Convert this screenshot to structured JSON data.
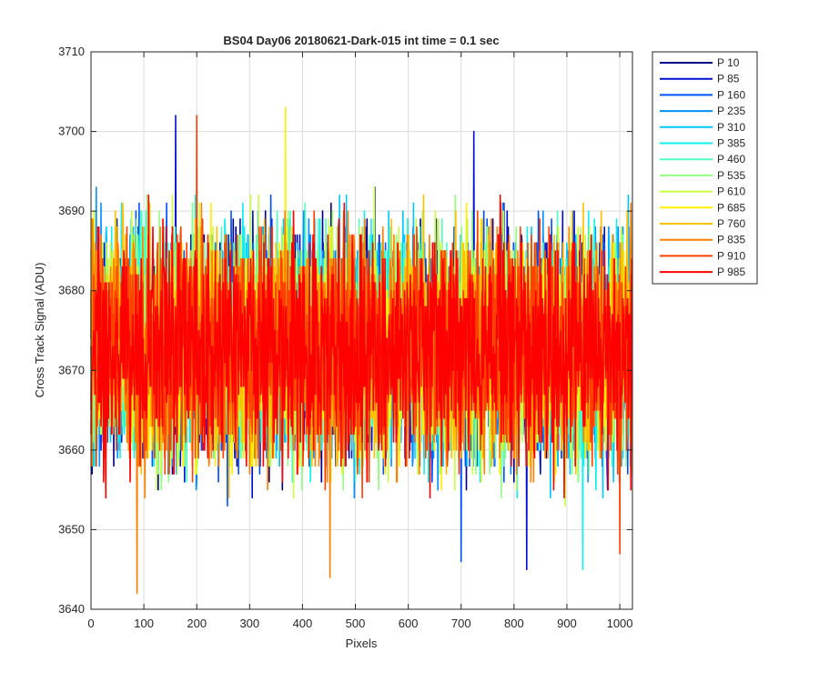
{
  "chart_data": {
    "type": "line",
    "title": "BS04 Day06 20180621-Dark-015 int time = 0.1 sec",
    "xlabel": "Pixels",
    "ylabel": "Cross Track Signal (ADU)",
    "xlim": [
      0,
      1024
    ],
    "ylim": [
      3640,
      3710
    ],
    "xticks": [
      0,
      100,
      200,
      300,
      400,
      500,
      600,
      700,
      800,
      900,
      1000
    ],
    "yticks": [
      3640,
      3650,
      3660,
      3670,
      3680,
      3690,
      3700,
      3710
    ],
    "grid": true,
    "legend_position": "outside-top-right",
    "x": {
      "start": 0,
      "end": 1023,
      "step": 1
    },
    "signal_mean": 3673,
    "noise_sd": 7,
    "notable_values": [
      {
        "series": "P 85",
        "x": 160,
        "y": 3702
      },
      {
        "series": "P 910",
        "x": 200,
        "y": 3702
      },
      {
        "series": "P 685",
        "x": 368,
        "y": 3703
      },
      {
        "series": "P 85",
        "x": 724,
        "y": 3700
      },
      {
        "series": "P 835",
        "x": 87,
        "y": 3642
      },
      {
        "series": "P 835",
        "x": 452,
        "y": 3644
      },
      {
        "series": "P 85",
        "x": 824,
        "y": 3645
      },
      {
        "series": "P 385",
        "x": 930,
        "y": 3645
      },
      {
        "series": "P 160",
        "x": 700,
        "y": 3646
      },
      {
        "series": "P 910",
        "x": 1000,
        "y": 3647
      }
    ],
    "series": [
      {
        "name": "P 10",
        "color": "#00008F"
      },
      {
        "name": "P 85",
        "color": "#0010D0"
      },
      {
        "name": "P 160",
        "color": "#0050FF"
      },
      {
        "name": "P 235",
        "color": "#0090FF"
      },
      {
        "name": "P 310",
        "color": "#00C8FF"
      },
      {
        "name": "P 385",
        "color": "#10F0F0"
      },
      {
        "name": "P 460",
        "color": "#50FFC0"
      },
      {
        "name": "P 535",
        "color": "#90FF80"
      },
      {
        "name": "P 610",
        "color": "#C8FF40"
      },
      {
        "name": "P 685",
        "color": "#FFF000"
      },
      {
        "name": "P 760",
        "color": "#FFC000"
      },
      {
        "name": "P 835",
        "color": "#FF8000"
      },
      {
        "name": "P 910",
        "color": "#FF4000"
      },
      {
        "name": "P 985",
        "color": "#FF0000"
      }
    ]
  }
}
